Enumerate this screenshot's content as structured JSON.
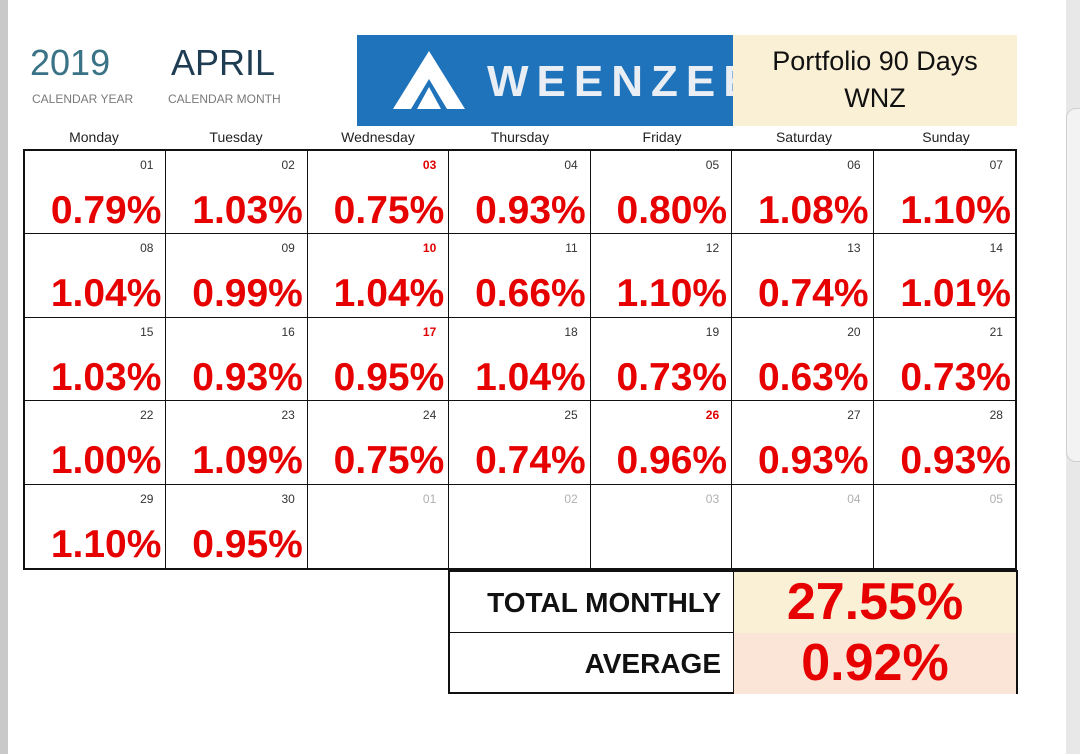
{
  "header": {
    "year": "2019",
    "year_label": "CALENDAR YEAR",
    "month": "APRIL",
    "month_label": "CALENDAR MONTH",
    "logo_text": "WEENZEE",
    "portfolio_line1": "Portfolio 90 Days",
    "portfolio_line2": "WNZ"
  },
  "days_of_week": [
    "Monday",
    "Tuesday",
    "Wednesday",
    "Thursday",
    "Friday",
    "Saturday",
    "Sunday"
  ],
  "weeks": [
    [
      {
        "day": "01",
        "value": "0.79%"
      },
      {
        "day": "02",
        "value": "1.03%"
      },
      {
        "day": "03",
        "value": "0.75%",
        "highlight": true
      },
      {
        "day": "04",
        "value": "0.93%"
      },
      {
        "day": "05",
        "value": "0.80%"
      },
      {
        "day": "06",
        "value": "1.08%"
      },
      {
        "day": "07",
        "value": "1.10%"
      }
    ],
    [
      {
        "day": "08",
        "value": "1.04%"
      },
      {
        "day": "09",
        "value": "0.99%"
      },
      {
        "day": "10",
        "value": "1.04%",
        "highlight": true
      },
      {
        "day": "11",
        "value": "0.66%"
      },
      {
        "day": "12",
        "value": "1.10%"
      },
      {
        "day": "13",
        "value": "0.74%"
      },
      {
        "day": "14",
        "value": "1.01%"
      }
    ],
    [
      {
        "day": "15",
        "value": "1.03%"
      },
      {
        "day": "16",
        "value": "0.93%"
      },
      {
        "day": "17",
        "value": "0.95%",
        "highlight": true
      },
      {
        "day": "18",
        "value": "1.04%"
      },
      {
        "day": "19",
        "value": "0.73%"
      },
      {
        "day": "20",
        "value": "0.63%"
      },
      {
        "day": "21",
        "value": "0.73%"
      }
    ],
    [
      {
        "day": "22",
        "value": "1.00%"
      },
      {
        "day": "23",
        "value": "1.09%"
      },
      {
        "day": "24",
        "value": "0.75%"
      },
      {
        "day": "25",
        "value": "0.74%"
      },
      {
        "day": "26",
        "value": "0.96%",
        "highlight": true
      },
      {
        "day": "27",
        "value": "0.93%"
      },
      {
        "day": "28",
        "value": "0.93%"
      }
    ],
    [
      {
        "day": "29",
        "value": "1.10%"
      },
      {
        "day": "30",
        "value": "0.95%"
      },
      {
        "day": "01",
        "value": "",
        "faded": true
      },
      {
        "day": "02",
        "value": "",
        "faded": true
      },
      {
        "day": "03",
        "value": "",
        "faded": true
      },
      {
        "day": "04",
        "value": "",
        "faded": true
      },
      {
        "day": "05",
        "value": "",
        "faded": true
      }
    ]
  ],
  "summary": {
    "total_label": "TOTAL MONTHLY",
    "total_value": "27.55%",
    "average_label": "AVERAGE",
    "average_value": "0.92%"
  },
  "colors": {
    "logo_bg": "#1f73ba",
    "portfolio_bg": "#faf0d6",
    "total_bg": "#faf0d6",
    "average_bg": "#fbe5d6",
    "value_red": "#e60000",
    "year_teal": "#3a7286"
  },
  "icons": {
    "logo_mark": "weenzee-logo-icon"
  }
}
